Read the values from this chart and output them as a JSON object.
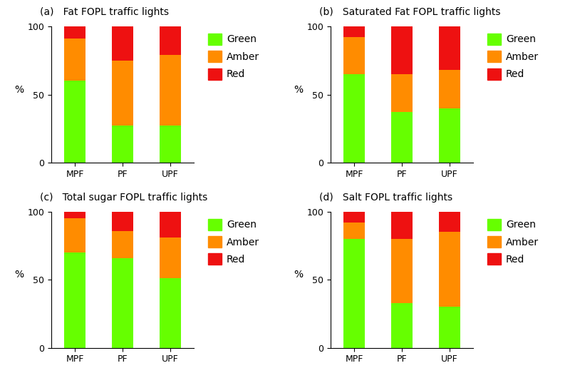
{
  "panels": [
    {
      "label": "(a)",
      "title": "Fat FOPL traffic lights",
      "categories": [
        "MPF",
        "PF",
        "UPF"
      ],
      "green": [
        60,
        27,
        27
      ],
      "amber": [
        31,
        48,
        52
      ],
      "red": [
        9,
        25,
        21
      ]
    },
    {
      "label": "(b)",
      "title": "Saturated Fat FOPL traffic lights",
      "categories": [
        "MPF",
        "PF",
        "UPF"
      ],
      "green": [
        65,
        37,
        40
      ],
      "amber": [
        27,
        28,
        28
      ],
      "red": [
        8,
        35,
        32
      ]
    },
    {
      "label": "(c)",
      "title": "Total sugar FOPL traffic lights",
      "categories": [
        "MPF",
        "PF",
        "UPF"
      ],
      "green": [
        70,
        66,
        51
      ],
      "amber": [
        25,
        20,
        30
      ],
      "red": [
        5,
        14,
        19
      ]
    },
    {
      "label": "(d)",
      "title": "Salt FOPL traffic lights",
      "categories": [
        "MPF",
        "PF",
        "UPF"
      ],
      "green": [
        80,
        33,
        30
      ],
      "amber": [
        12,
        47,
        55
      ],
      "red": [
        8,
        20,
        15
      ]
    }
  ],
  "colors": {
    "green": "#66FF00",
    "amber": "#FF8C00",
    "red": "#EE1111"
  },
  "ylabel": "%",
  "ylim": [
    0,
    100
  ],
  "yticks": [
    0,
    50,
    100
  ],
  "bar_width": 0.45,
  "title_fontsize": 10,
  "label_fontsize": 10,
  "tick_fontsize": 9,
  "legend_fontsize": 10
}
